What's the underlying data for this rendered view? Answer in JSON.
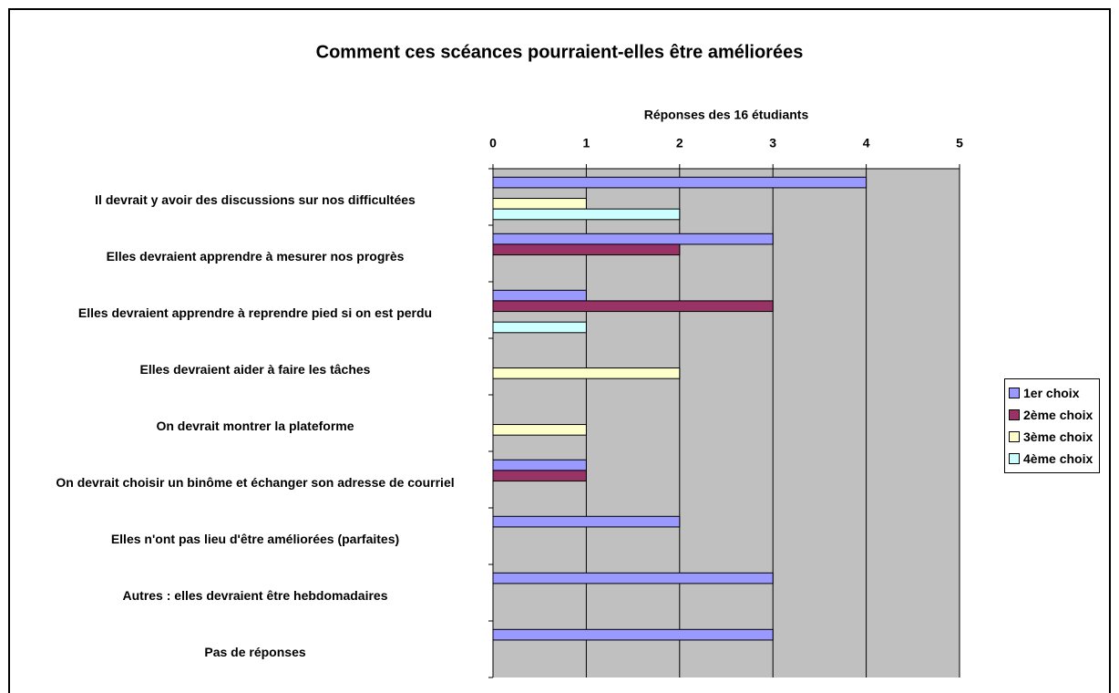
{
  "chart_data": {
    "type": "hbar",
    "title": "Comment ces scéances pourraient-elles être améliorées",
    "x_label": "Réponses des 16 étudiants",
    "categories": [
      "Il devrait y avoir des discussions sur nos difficultées",
      "Elles devraient apprendre à mesurer nos progrès",
      "Elles devraient apprendre à reprendre pied si on est perdu",
      "Elles devraient aider à faire les tâches",
      "On devrait montrer la plateforme",
      "On devrait choisir un binôme et échanger son adresse de courriel",
      "Elles n'ont pas lieu d'être améliorées (parfaites)",
      "Autres : elles devraient être hebdomadaires",
      "Pas de réponses"
    ],
    "series": [
      {
        "name": "1er choix",
        "color": "#9999ff",
        "values": [
          4,
          3,
          1,
          null,
          null,
          1,
          2,
          3,
          3
        ]
      },
      {
        "name": "2ème choix",
        "color": "#993366",
        "values": [
          null,
          2,
          3,
          null,
          null,
          1,
          null,
          null,
          null
        ]
      },
      {
        "name": "3ème choix",
        "color": "#ffffcc",
        "values": [
          1,
          null,
          null,
          2,
          1,
          null,
          null,
          null,
          null
        ]
      },
      {
        "name": "4ème choix",
        "color": "#ccffff",
        "values": [
          2,
          null,
          1,
          null,
          null,
          null,
          null,
          null,
          null
        ]
      }
    ],
    "xlim": [
      0,
      5
    ],
    "xticks": [
      0,
      1,
      2,
      3,
      4,
      5
    ],
    "grid": true,
    "legend": "right"
  }
}
